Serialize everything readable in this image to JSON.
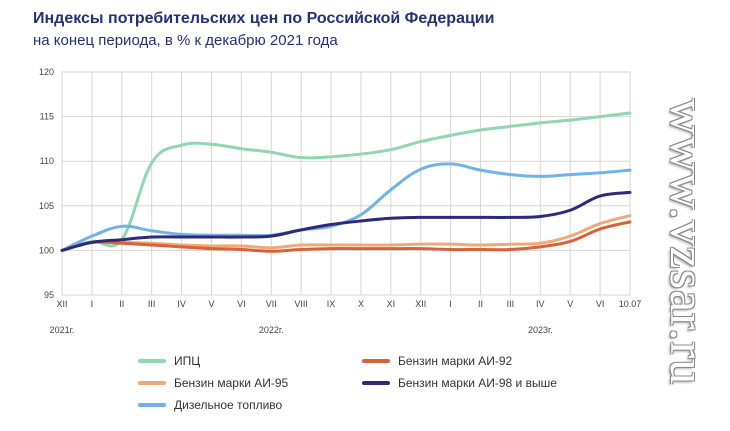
{
  "header": {
    "title": "Индексы потребительских цен по Российской Федерации",
    "subtitle": "на конец периода, в % к декабрю 2021 года"
  },
  "watermark": "www.vzsar.ru",
  "chart_data": {
    "type": "line",
    "title": "Индексы потребительских цен по Российской Федерации",
    "subtitle": "на конец периода, в % к декабрю 2021 года",
    "ylim": [
      95,
      120
    ],
    "yticks": [
      95,
      100,
      105,
      110,
      115,
      120
    ],
    "grid": true,
    "legend_position": "bottom",
    "categories": [
      "XII",
      "I",
      "II",
      "III",
      "IV",
      "V",
      "VI",
      "VII",
      "VIII",
      "IX",
      "X",
      "XI",
      "XII",
      "I",
      "II",
      "III",
      "IV",
      "V",
      "VI",
      "10.07"
    ],
    "year_labels": [
      {
        "label": "2021г.",
        "at_category": 0
      },
      {
        "label": "2022г.",
        "at_category": 7
      },
      {
        "label": "2023г.",
        "at_category": 16
      }
    ],
    "series": [
      {
        "name": "ИПЦ",
        "color": "#8fd6b1",
        "values": [
          100,
          101.0,
          101.2,
          109.8,
          111.8,
          111.9,
          111.4,
          111.0,
          110.4,
          110.5,
          110.8,
          111.3,
          112.2,
          112.9,
          113.5,
          113.9,
          114.3,
          114.6,
          115.0,
          115.4
        ]
      },
      {
        "name": "Бензин марки АИ-92",
        "color": "#d9613a",
        "values": [
          100,
          100.9,
          100.8,
          100.6,
          100.4,
          100.2,
          100.1,
          99.9,
          100.1,
          100.2,
          100.2,
          100.2,
          100.2,
          100.1,
          100.1,
          100.1,
          100.4,
          101.0,
          102.4,
          103.2
        ]
      },
      {
        "name": "Бензин марки АИ-95",
        "color": "#f0a876",
        "values": [
          100,
          100.9,
          100.9,
          100.8,
          100.6,
          100.5,
          100.5,
          100.3,
          100.6,
          100.6,
          100.6,
          100.6,
          100.7,
          100.7,
          100.6,
          100.7,
          100.8,
          101.6,
          103.0,
          103.9
        ]
      },
      {
        "name": "Бензин марки АИ-98 и выше",
        "color": "#2e2a7a",
        "values": [
          100,
          100.9,
          101.2,
          101.5,
          101.5,
          101.5,
          101.5,
          101.6,
          102.3,
          102.9,
          103.3,
          103.6,
          103.7,
          103.7,
          103.7,
          103.7,
          103.8,
          104.5,
          106.1,
          106.5
        ]
      },
      {
        "name": "Дизельное топливо",
        "color": "#72b3e6",
        "values": [
          100,
          101.6,
          102.7,
          102.2,
          101.8,
          101.7,
          101.7,
          101.7,
          102.3,
          102.7,
          104.0,
          106.8,
          109.1,
          109.7,
          109.0,
          108.5,
          108.3,
          108.5,
          108.7,
          109.0
        ]
      }
    ]
  },
  "legend": [
    {
      "label": "ИПЦ",
      "color": "#8fd6b1"
    },
    {
      "label": "Бензин марки АИ-92",
      "color": "#d9613a"
    },
    {
      "label": "Бензин марки АИ-95",
      "color": "#f0a876"
    },
    {
      "label": "Бензин марки АИ-98 и выше",
      "color": "#2e2a7a"
    },
    {
      "label": "Дизельное топливо",
      "color": "#72b3e6"
    }
  ]
}
